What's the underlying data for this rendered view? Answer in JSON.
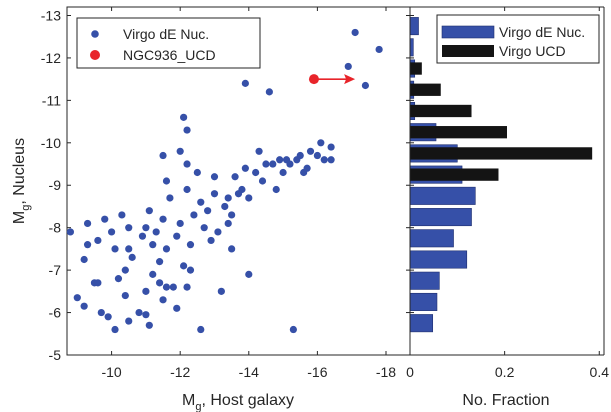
{
  "colors": {
    "dwarf": "#3650a8",
    "ucd": "#e8242a",
    "ucd_bar": "#141414",
    "axis": "#262626"
  },
  "chart_data": [
    {
      "type": "scatter",
      "xlabel_main": "M",
      "xlabel_sub": "g",
      "xlabel_rest": ", Host galaxy",
      "ylabel_main": "M",
      "ylabel_sub": "g",
      "ylabel_rest": ", Nucleus",
      "xlim": [
        -8.7,
        -18.7
      ],
      "ylim": [
        -5,
        -13.2
      ],
      "xticks": [
        -10,
        -12,
        -14,
        -16,
        -18
      ],
      "yticks": [
        -5,
        -6,
        -7,
        -8,
        -9,
        -10,
        -11,
        -12,
        -13
      ],
      "legend": {
        "position": "top-left",
        "entries": [
          "Virgo dE Nuc.",
          "NGC936_UCD"
        ]
      },
      "series": [
        {
          "name": "Virgo dE Nuc.",
          "points": [
            [
              -8.8,
              -7.9
            ],
            [
              -9.0,
              -6.35
            ],
            [
              -9.2,
              -6.15
            ],
            [
              -9.2,
              -7.25
            ],
            [
              -9.3,
              -7.6
            ],
            [
              -9.3,
              -8.1
            ],
            [
              -9.5,
              -6.7
            ],
            [
              -9.6,
              -7.7
            ],
            [
              -9.7,
              -6.0
            ],
            [
              -9.8,
              -8.2
            ],
            [
              -9.9,
              -5.9
            ],
            [
              -10.0,
              -7.9
            ],
            [
              -10.1,
              -7.5
            ],
            [
              -10.1,
              -5.6
            ],
            [
              -10.2,
              -6.8
            ],
            [
              -10.3,
              -8.3
            ],
            [
              -10.4,
              -7.0
            ],
            [
              -10.4,
              -6.4
            ],
            [
              -10.5,
              -8.0
            ],
            [
              -10.5,
              -5.8
            ],
            [
              -10.6,
              -7.3
            ],
            [
              -10.8,
              -6.0
            ],
            [
              -10.9,
              -7.8
            ],
            [
              -11.0,
              -8.0
            ],
            [
              -11.0,
              -6.5
            ],
            [
              -11.0,
              -5.95
            ],
            [
              -11.1,
              -8.4
            ],
            [
              -11.1,
              -5.7
            ],
            [
              -11.2,
              -7.6
            ],
            [
              -11.2,
              -6.9
            ],
            [
              -11.3,
              -7.9
            ],
            [
              -11.4,
              -6.7
            ],
            [
              -11.4,
              -7.2
            ],
            [
              -11.5,
              -8.2
            ],
            [
              -11.5,
              -6.3
            ],
            [
              -11.6,
              -9.1
            ],
            [
              -11.6,
              -7.5
            ],
            [
              -11.6,
              -6.6
            ],
            [
              -11.7,
              -8.7
            ],
            [
              -11.8,
              -6.6
            ],
            [
              -11.9,
              -7.8
            ],
            [
              -12.0,
              -8.1
            ],
            [
              -12.2,
              -10.3
            ],
            [
              -12.2,
              -9.5
            ],
            [
              -12.2,
              -8.9
            ],
            [
              -12.3,
              -7.6
            ],
            [
              -12.3,
              -7.0
            ],
            [
              -12.4,
              -8.3
            ],
            [
              -12.5,
              -9.3
            ],
            [
              -12.6,
              -8.6
            ],
            [
              -12.7,
              -8.0
            ],
            [
              -12.8,
              -8.4
            ],
            [
              -12.9,
              -7.7
            ],
            [
              -13.0,
              -9.2
            ],
            [
              -13.0,
              -8.8
            ],
            [
              -13.1,
              -7.9
            ],
            [
              -13.2,
              -6.5
            ],
            [
              -13.3,
              -8.5
            ],
            [
              -13.4,
              -8.7
            ],
            [
              -13.5,
              -8.3
            ],
            [
              -13.5,
              -7.5
            ],
            [
              -13.6,
              -9.2
            ],
            [
              -13.7,
              -8.8
            ],
            [
              -13.8,
              -8.9
            ],
            [
              -13.9,
              -11.4
            ],
            [
              -13.9,
              -9.4
            ],
            [
              -14.0,
              -8.7
            ],
            [
              -14.0,
              -6.9
            ],
            [
              -14.2,
              -9.3
            ],
            [
              -14.3,
              -9.8
            ],
            [
              -14.4,
              -9.1
            ],
            [
              -14.5,
              -9.5
            ],
            [
              -14.6,
              -11.2
            ],
            [
              -14.7,
              -9.5
            ],
            [
              -14.8,
              -8.9
            ],
            [
              -14.9,
              -9.6
            ],
            [
              -15.0,
              -9.3
            ],
            [
              -15.1,
              -9.6
            ],
            [
              -15.2,
              -9.5
            ],
            [
              -15.3,
              -5.6
            ],
            [
              -15.4,
              -9.6
            ],
            [
              -15.5,
              -9.7
            ],
            [
              -15.6,
              -9.3
            ],
            [
              -15.7,
              -9.4
            ],
            [
              -15.8,
              -9.8
            ],
            [
              -16.0,
              -9.7
            ],
            [
              -16.1,
              -10.0
            ],
            [
              -16.2,
              -9.6
            ],
            [
              -16.4,
              -9.9
            ],
            [
              -16.4,
              -9.6
            ],
            [
              -12.2,
              -6.6
            ],
            [
              -9.6,
              -6.7
            ],
            [
              -16.9,
              -11.8
            ],
            [
              -17.1,
              -12.6
            ],
            [
              -17.4,
              -11.35
            ],
            [
              -17.8,
              -12.2
            ],
            [
              -12.1,
              -10.6
            ],
            [
              -12.6,
              -5.6
            ],
            [
              -12.0,
              -9.8
            ],
            [
              -11.5,
              -9.7
            ],
            [
              -12.1,
              -7.1
            ],
            [
              -13.4,
              -8.1
            ],
            [
              -11.9,
              -6.1
            ],
            [
              -10.5,
              -7.5
            ]
          ]
        },
        {
          "name": "NGC936_UCD",
          "points": [
            [
              -15.9,
              -11.5
            ]
          ],
          "arrow_to": [
            -17.1,
            -11.5
          ]
        }
      ]
    },
    {
      "type": "bar",
      "orientation": "horizontal",
      "xlabel": "No. Fraction",
      "xlim": [
        0,
        0.41
      ],
      "xticks": [
        0,
        0.2,
        0.4
      ],
      "xtick_labels": [
        "0",
        "0.2",
        "0.4"
      ],
      "ylim": [
        -5,
        -13.2
      ],
      "bin_width": 0.5,
      "legend": {
        "position": "top-right",
        "entries": [
          "Virgo dE Nuc.",
          "Virgo UCD"
        ]
      },
      "series": [
        {
          "name": "Virgo dE Nuc.",
          "bin_centers": [
            -5.75,
            -6.25,
            -6.75,
            -7.25,
            -7.75,
            -8.25,
            -8.75,
            -9.25,
            -9.75,
            -10.25,
            -10.75,
            -11.25,
            -11.75,
            -12.25,
            -12.75
          ],
          "values": [
            0.048,
            0.057,
            0.062,
            0.12,
            0.092,
            0.13,
            0.138,
            0.11,
            0.1,
            0.055,
            0.01,
            0.008,
            0.01,
            0.007,
            0.018
          ]
        },
        {
          "name": "Virgo UCD",
          "bin_centers": [
            -9.25,
            -9.75,
            -10.25,
            -10.75,
            -11.25,
            -11.75
          ],
          "values": [
            0.187,
            0.385,
            0.205,
            0.13,
            0.065,
            0.025
          ]
        }
      ]
    }
  ]
}
